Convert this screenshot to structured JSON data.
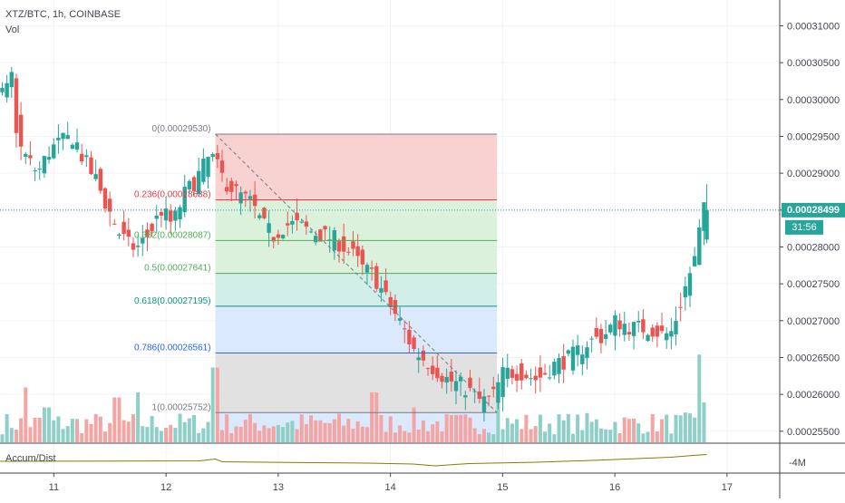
{
  "header": {
    "symbol_line": "XTZ/BTC, 1h, COINBASE",
    "volume_label": "Vol"
  },
  "oscillator": {
    "label": "Accum/Dist",
    "axis_label": "-4M",
    "color": "#808000"
  },
  "price_tag": {
    "value": "0.00028499",
    "countdown": "31:56",
    "color": "#26a69a"
  },
  "colors": {
    "up": "#26a69a",
    "down": "#ef5350",
    "up_vol": "#8ecfc7",
    "down_vol": "#f4a5a3"
  },
  "fib": {
    "levels": [
      {
        "ratio": 0,
        "label": "0(0.00029530)",
        "color": "#787b86"
      },
      {
        "ratio": 0.236,
        "label": "0.236(0.00028638)",
        "color": "#f23645"
      },
      {
        "ratio": 0.382,
        "label": "0.382(0.00028087)",
        "color": "#4caf50"
      },
      {
        "ratio": 0.5,
        "label": "0.5(0.00027641)",
        "color": "#4caf50"
      },
      {
        "ratio": 0.618,
        "label": "0.618(0.00027195)",
        "color": "#089981"
      },
      {
        "ratio": 0.786,
        "label": "0.786(0.00026561)",
        "color": "#2962ff"
      },
      {
        "ratio": 1,
        "label": "1(0.00025752)",
        "color": "#787b86"
      }
    ],
    "fills": [
      "#f7c9c9",
      "#d6efd6",
      "#d6efd6",
      "#c9ece4",
      "#d3e6fb",
      "#dcdcdc"
    ]
  },
  "chart_data": {
    "type": "candlestick",
    "title": "XTZ/BTC, 1h, COINBASE",
    "y_ticks": [
      "0.00031000",
      "0.00030500",
      "0.00030000",
      "0.00029500",
      "0.00029000",
      "0.00028500",
      "0.00028000",
      "0.00027500",
      "0.00027000",
      "0.00026500",
      "0.00026000",
      "0.00025500"
    ],
    "y_tick_values": [
      0.00031,
      0.000305,
      0.0003,
      0.000295,
      0.00029,
      0.000285,
      0.00028,
      0.000275,
      0.00027,
      0.000265,
      0.00026,
      0.000255
    ],
    "x_ticks": [
      "11",
      "12",
      "13",
      "14",
      "15",
      "16",
      "17"
    ],
    "x_tick_values": [
      11,
      12,
      13,
      14,
      15,
      16,
      17
    ],
    "ylim": [
      0.0002535,
      0.0003135
    ],
    "xlim": [
      10.52,
      17.47
    ],
    "last_price": 0.00028499,
    "fib_range": {
      "high": 0.0002953,
      "low": 0.00025752,
      "x_start": 12.44,
      "x_end": 14.95
    },
    "grid": true,
    "close_path": [
      [
        10.52,
        0.0003
      ],
      [
        10.62,
        0.000301
      ],
      [
        10.66,
        0.000304
      ],
      [
        10.72,
        0.000294
      ],
      [
        10.8,
        0.000292
      ],
      [
        10.9,
        0.00029
      ],
      [
        11.0,
        0.000293
      ],
      [
        11.08,
        0.000294
      ],
      [
        11.22,
        0.000295
      ],
      [
        11.3,
        0.000292
      ],
      [
        11.42,
        0.000289
      ],
      [
        11.5,
        0.000286
      ],
      [
        11.62,
        0.000282
      ],
      [
        11.72,
        0.00028
      ],
      [
        11.8,
        0.00028
      ],
      [
        11.9,
        0.000282
      ],
      [
        12.0,
        0.000285
      ],
      [
        12.1,
        0.000283
      ],
      [
        12.2,
        0.000287
      ],
      [
        12.3,
        0.000289
      ],
      [
        12.44,
        0.0002925
      ],
      [
        12.56,
        0.000289
      ],
      [
        12.7,
        0.000287
      ],
      [
        12.8,
        0.000286
      ],
      [
        12.9,
        0.000283
      ],
      [
        13.0,
        0.0002815
      ],
      [
        13.1,
        0.000283
      ],
      [
        13.2,
        0.000283
      ],
      [
        13.35,
        0.000282
      ],
      [
        13.55,
        0.000281
      ],
      [
        13.7,
        0.000279
      ],
      [
        13.8,
        0.000277
      ],
      [
        13.9,
        0.000276
      ],
      [
        14.0,
        0.000273
      ],
      [
        14.12,
        0.00027
      ],
      [
        14.25,
        0.000266
      ],
      [
        14.4,
        0.000264
      ],
      [
        14.55,
        0.000262
      ],
      [
        14.7,
        0.000261
      ],
      [
        14.85,
        0.000259
      ],
      [
        14.95,
        0.0002595
      ],
      [
        15.05,
        0.000263
      ],
      [
        15.2,
        0.000263
      ],
      [
        15.35,
        0.000262
      ],
      [
        15.5,
        0.000264
      ],
      [
        15.65,
        0.000265
      ],
      [
        15.8,
        0.000267
      ],
      [
        15.95,
        0.000268
      ],
      [
        16.05,
        0.00027
      ],
      [
        16.2,
        0.000269
      ],
      [
        16.35,
        0.000269
      ],
      [
        16.48,
        0.000268
      ],
      [
        16.55,
        0.0002685
      ],
      [
        16.62,
        0.000272
      ],
      [
        16.7,
        0.000276
      ],
      [
        16.77,
        0.000279
      ],
      [
        16.82,
        0.00028499
      ]
    ],
    "volume_spikes": [
      [
        10.74,
        0.55
      ],
      [
        10.93,
        0.35
      ],
      [
        11.56,
        0.45
      ],
      [
        11.75,
        0.5
      ],
      [
        12.44,
        0.75
      ],
      [
        13.85,
        0.5
      ],
      [
        14.2,
        0.35
      ],
      [
        14.95,
        0.6
      ],
      [
        16.77,
        0.88
      ],
      [
        16.8,
        0.4
      ]
    ],
    "accum_dist_path": [
      [
        10.52,
        0.4
      ],
      [
        12.3,
        0.35
      ],
      [
        12.44,
        0.15
      ],
      [
        12.5,
        0.45
      ],
      [
        13.3,
        0.55
      ],
      [
        13.8,
        0.6
      ],
      [
        14.2,
        0.7
      ],
      [
        14.4,
        0.9
      ],
      [
        14.7,
        0.65
      ],
      [
        15.3,
        0.5
      ],
      [
        15.8,
        0.3
      ],
      [
        16.2,
        0.1
      ],
      [
        16.5,
        -0.05
      ],
      [
        16.7,
        -0.25
      ],
      [
        16.82,
        -0.35
      ]
    ]
  }
}
